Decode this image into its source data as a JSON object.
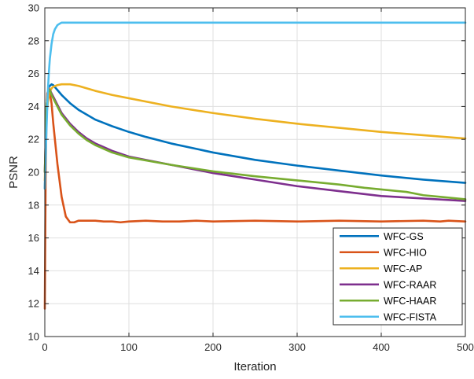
{
  "chart_data": {
    "type": "line",
    "xlabel": "Iteration",
    "ylabel": "PSNR",
    "xlim": [
      0,
      500
    ],
    "ylim": [
      10,
      30
    ],
    "xticks": [
      0,
      100,
      200,
      300,
      400,
      500
    ],
    "yticks": [
      10,
      12,
      14,
      16,
      18,
      20,
      22,
      24,
      26,
      28,
      30
    ],
    "grid": true,
    "legend_position": "bottom-right",
    "series": [
      {
        "name": "WFC-GS",
        "color": "#0072BD",
        "x": [
          0,
          2,
          5,
          8,
          10,
          15,
          20,
          30,
          40,
          50,
          60,
          80,
          100,
          120,
          150,
          200,
          250,
          300,
          350,
          400,
          450,
          500
        ],
        "y": [
          19.0,
          24.0,
          25.2,
          25.35,
          25.3,
          25.0,
          24.7,
          24.2,
          23.8,
          23.5,
          23.2,
          22.8,
          22.45,
          22.15,
          21.75,
          21.2,
          20.75,
          20.4,
          20.1,
          19.8,
          19.55,
          19.35
        ]
      },
      {
        "name": "WFC-HIO",
        "color": "#D95319",
        "x": [
          0,
          1,
          2,
          3,
          5,
          8,
          10,
          15,
          20,
          25,
          30,
          35,
          40,
          50,
          60,
          70,
          80,
          90,
          100,
          120,
          140,
          160,
          180,
          200,
          250,
          300,
          350,
          400,
          450,
          470,
          480,
          500
        ],
        "y": [
          11.7,
          19.5,
          23.5,
          24.8,
          25.1,
          24.2,
          23.0,
          20.5,
          18.5,
          17.3,
          16.95,
          16.95,
          17.05,
          17.05,
          17.05,
          17.0,
          17.0,
          16.95,
          17.0,
          17.05,
          17.0,
          17.0,
          17.05,
          17.0,
          17.05,
          17.0,
          17.05,
          17.0,
          17.05,
          17.0,
          17.05,
          17.0
        ]
      },
      {
        "name": "WFC-AP",
        "color": "#EDB120",
        "x": [
          0,
          2,
          5,
          8,
          10,
          15,
          20,
          30,
          40,
          50,
          60,
          80,
          100,
          150,
          200,
          250,
          300,
          350,
          400,
          450,
          500
        ],
        "y": [
          19.5,
          23.5,
          24.8,
          25.1,
          25.2,
          25.3,
          25.35,
          25.35,
          25.25,
          25.1,
          24.95,
          24.7,
          24.5,
          24.0,
          23.6,
          23.25,
          22.95,
          22.7,
          22.45,
          22.25,
          22.05
        ]
      },
      {
        "name": "WFC-RAAR",
        "color": "#7E2F8E",
        "x": [
          0,
          2,
          4,
          6,
          8,
          10,
          15,
          20,
          30,
          40,
          50,
          60,
          80,
          100,
          150,
          200,
          250,
          300,
          350,
          400,
          450,
          500
        ],
        "y": [
          20.0,
          24.0,
          24.9,
          25.0,
          24.8,
          24.6,
          24.1,
          23.6,
          22.95,
          22.45,
          22.05,
          21.75,
          21.3,
          20.95,
          20.45,
          19.95,
          19.55,
          19.15,
          18.85,
          18.55,
          18.4,
          18.25
        ]
      },
      {
        "name": "WFC-HAAR",
        "color": "#77AC30",
        "x": [
          0,
          2,
          4,
          6,
          8,
          10,
          15,
          20,
          30,
          40,
          50,
          60,
          80,
          100,
          150,
          200,
          250,
          300,
          350,
          380,
          400,
          430,
          450,
          470,
          500
        ],
        "y": [
          20.0,
          24.0,
          24.9,
          25.0,
          24.7,
          24.5,
          24.0,
          23.5,
          22.85,
          22.35,
          21.95,
          21.65,
          21.2,
          20.9,
          20.45,
          20.05,
          19.75,
          19.5,
          19.25,
          19.05,
          18.95,
          18.8,
          18.6,
          18.5,
          18.35
        ]
      },
      {
        "name": "WFC-FISTA",
        "color": "#4DBEEE",
        "x": [
          0,
          1,
          2,
          3,
          4,
          5,
          6,
          8,
          10,
          12,
          15,
          18,
          20,
          25,
          30,
          40,
          50,
          100,
          200,
          300,
          400,
          500
        ],
        "y": [
          19.0,
          20.8,
          22.6,
          24.1,
          25.3,
          26.2,
          26.9,
          27.8,
          28.4,
          28.7,
          28.95,
          29.05,
          29.1,
          29.1,
          29.1,
          29.1,
          29.1,
          29.1,
          29.1,
          29.1,
          29.1,
          29.1
        ]
      }
    ]
  }
}
